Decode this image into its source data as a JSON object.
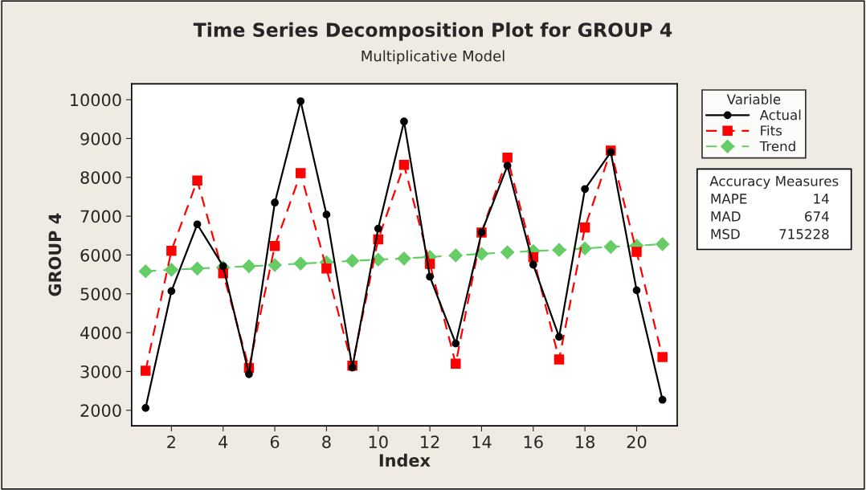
{
  "chart_data": {
    "type": "line",
    "title": "Time Series Decomposition Plot for GROUP 4",
    "subtitle": "Multiplicative Model",
    "xlabel": "Index",
    "ylabel": "GROUP 4",
    "legend_title": "Variable",
    "x": [
      1,
      2,
      3,
      4,
      5,
      6,
      7,
      8,
      9,
      10,
      11,
      12,
      13,
      14,
      15,
      16,
      17,
      18,
      19,
      20,
      21
    ],
    "series": [
      {
        "name": "Actual",
        "color": "#000000",
        "marker": "circle",
        "line_style": "solid",
        "values": [
          2060,
          5070,
          6790,
          5710,
          2930,
          7350,
          9960,
          7040,
          3100,
          6680,
          9440,
          5440,
          3720,
          6580,
          8300,
          5750,
          3890,
          7700,
          8650,
          5090,
          2270
        ]
      },
      {
        "name": "Fits",
        "color": "#ff0000",
        "marker": "square",
        "line_style": "dashed",
        "values": [
          3020,
          6110,
          7920,
          5530,
          3090,
          6230,
          8110,
          5650,
          3150,
          6400,
          8320,
          5770,
          3200,
          6580,
          8510,
          5940,
          3310,
          6710,
          8690,
          6080,
          3370
        ]
      },
      {
        "name": "Trend",
        "color": "#66cc66",
        "marker": "diamond",
        "line_style": "dashed",
        "values": [
          5580,
          5620,
          5650,
          5680,
          5710,
          5740,
          5780,
          5810,
          5850,
          5880,
          5910,
          5950,
          5990,
          6030,
          6070,
          6100,
          6130,
          6170,
          6210,
          6240,
          6280
        ]
      }
    ],
    "xlim": [
      0.46,
      21.57
    ],
    "xticks": [
      2,
      4,
      6,
      8,
      10,
      12,
      14,
      16,
      18,
      20
    ],
    "ylim": [
      1600,
      10410
    ],
    "yticks": [
      2000,
      3000,
      4000,
      5000,
      6000,
      7000,
      8000,
      9000,
      10000
    ],
    "grid": false,
    "legend": "top right",
    "annotations": [
      "Accuracy Measures",
      "MAPE 14",
      "MAD 674",
      "MSD 715228"
    ]
  }
}
